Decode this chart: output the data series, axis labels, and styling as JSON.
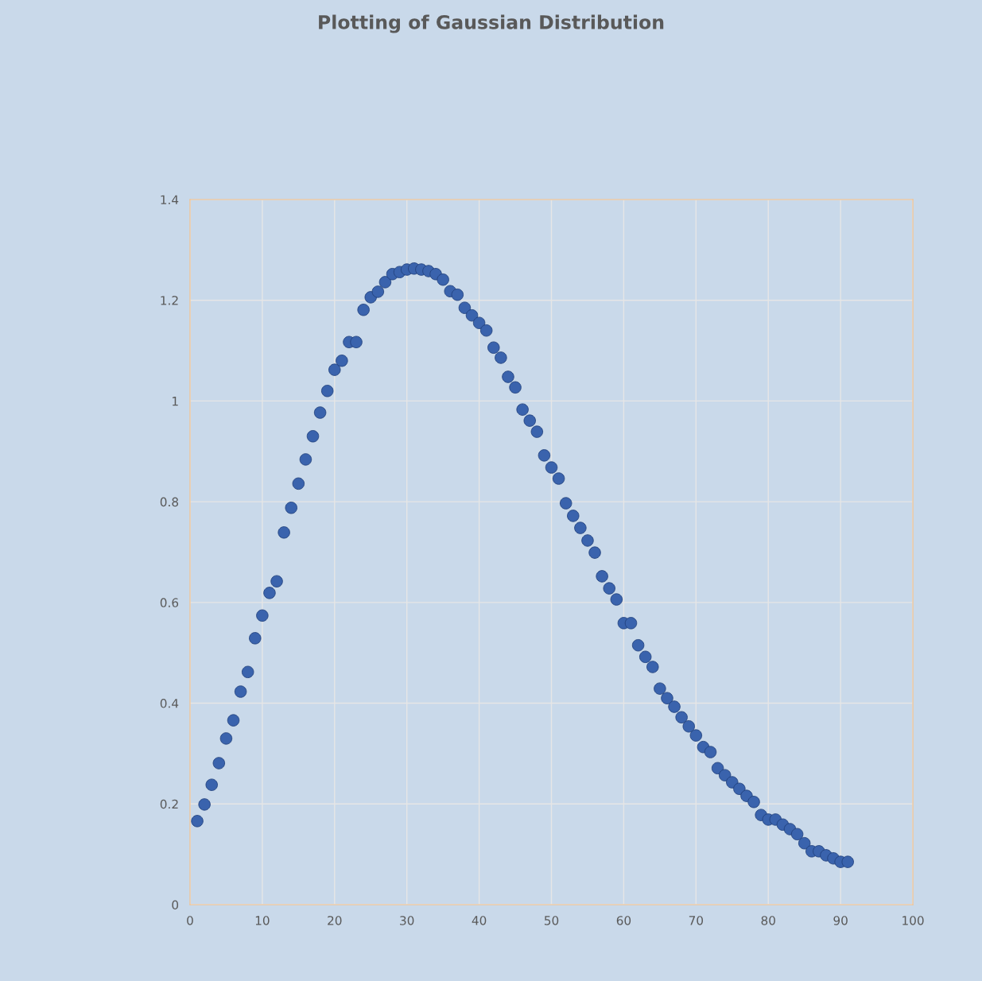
{
  "chart_data": {
    "type": "scatter",
    "title": "Plotting of Gaussian Distribution",
    "x": [
      1,
      2,
      3,
      4,
      5,
      6,
      7,
      8,
      9,
      10,
      11,
      12,
      13,
      14,
      15,
      16,
      17,
      18,
      19,
      20,
      21,
      22,
      23,
      24,
      25,
      26,
      27,
      28,
      29,
      30,
      31,
      32,
      33,
      34,
      35,
      36,
      37,
      38,
      39,
      40,
      41,
      42,
      43,
      44,
      45,
      46,
      47,
      48,
      49,
      50,
      51,
      52,
      53,
      54,
      55,
      56,
      57,
      58,
      59,
      60,
      61,
      62,
      63,
      64,
      65,
      66,
      67,
      68,
      69,
      70,
      71,
      72,
      73,
      74,
      75,
      76,
      77,
      78,
      79,
      80,
      81,
      82,
      83,
      84,
      85,
      86,
      87,
      88,
      89,
      90,
      91
    ],
    "series": [
      {
        "color": "#3a63ad",
        "values": [
          0.166,
          0.199,
          0.238,
          0.281,
          0.33,
          0.366,
          0.423,
          0.462,
          0.529,
          0.574,
          0.619,
          0.642,
          0.739,
          0.788,
          0.836,
          0.884,
          0.93,
          0.977,
          1.02,
          1.062,
          1.08,
          1.117,
          1.117,
          1.181,
          1.206,
          1.217,
          1.236,
          1.252,
          1.256,
          1.261,
          1.263,
          1.261,
          1.258,
          1.252,
          1.241,
          1.218,
          1.211,
          1.185,
          1.17,
          1.155,
          1.14,
          1.106,
          1.086,
          1.048,
          1.027,
          0.983,
          0.961,
          0.939,
          0.892,
          0.868,
          0.846,
          0.797,
          0.772,
          0.748,
          0.723,
          0.699,
          0.652,
          0.628,
          0.606,
          0.559,
          0.559,
          0.515,
          0.492,
          0.472,
          0.429,
          0.41,
          0.393,
          0.372,
          0.354,
          0.336,
          0.313,
          0.303,
          0.271,
          0.257,
          0.243,
          0.23,
          0.216,
          0.204,
          0.178,
          0.169,
          0.169,
          0.159,
          0.15,
          0.14,
          0.122,
          0.106,
          0.106,
          0.098,
          0.092,
          0.085,
          0.085
        ]
      }
    ],
    "xlim": [
      0,
      100
    ],
    "xticks": [
      0,
      10,
      20,
      30,
      40,
      50,
      60,
      70,
      80,
      90,
      100
    ],
    "ylim": [
      0,
      1.4
    ],
    "yticks": [
      0,
      0.2,
      0.4,
      0.6,
      0.8,
      1,
      1.2,
      1.4
    ],
    "grid": true,
    "marker": "circle"
  }
}
